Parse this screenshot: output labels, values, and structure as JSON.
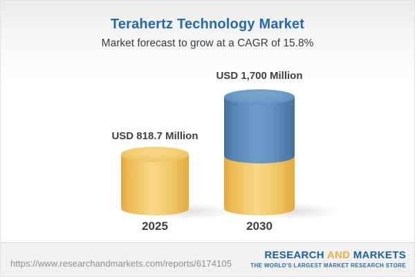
{
  "header": {
    "title": "Terahertz Technology Market",
    "subtitle": "Market forecast to grow at a CAGR of 15.8%"
  },
  "chart_data": {
    "type": "bar",
    "variant": "3d-cylinder",
    "title": "Terahertz Technology Market",
    "subtitle": "Market forecast to grow at a CAGR of 15.8%",
    "unit": "USD Million",
    "cagr_pct": 15.8,
    "categories": [
      "2025",
      "2030"
    ],
    "values": [
      818.7,
      1700
    ],
    "value_labels": [
      "USD 818.7 Million",
      "USD 1,700 Million"
    ],
    "series": [
      {
        "name": "2025 base value",
        "color": "#f2c964",
        "values": [
          818.7,
          818.7
        ]
      },
      {
        "name": "growth to 2030",
        "color": "#5e8fbe",
        "values": [
          0,
          881.3
        ]
      }
    ],
    "legend_position": "none",
    "axes_visible": false,
    "grid": false
  },
  "footer": {
    "url": "https://www.researchandmarkets.com/reports/6174105",
    "logo": {
      "word1": "RESEARCH",
      "word2": "AND",
      "word3": "MARKETS",
      "tagline": "THE WORLD'S LARGEST MARKET RESEARCH STORE"
    }
  },
  "colors": {
    "title_blue": "#2268b0",
    "text_dark": "#3e3e3e",
    "bar_yellow": "#f2c964",
    "bar_blue": "#5e8fbe",
    "logo_blue": "#1b5fa5",
    "logo_gold": "#f0ad3a",
    "url_gray": "#8d8d8d",
    "footer_bg": "#f1f1f2"
  }
}
